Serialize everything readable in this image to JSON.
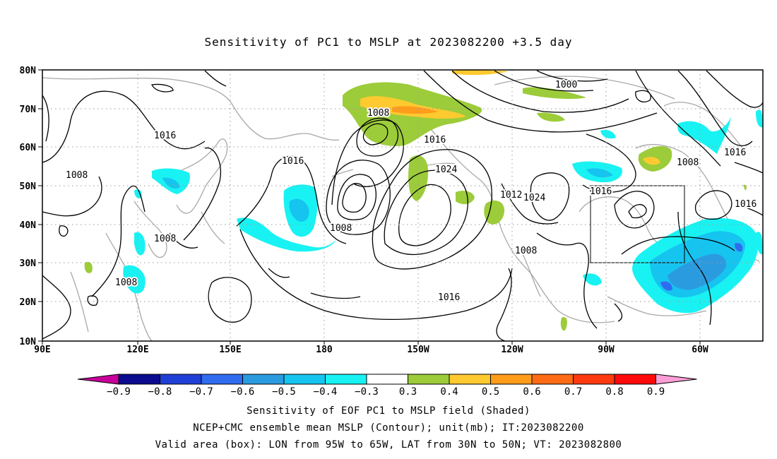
{
  "title": "Sensitivity of PC1 to MSLP at 2023082200 +3.5 day",
  "lat_labels": [
    "80N",
    "70N",
    "60N",
    "50N",
    "40N",
    "30N",
    "20N",
    "10N"
  ],
  "lon_labels": [
    "90E",
    "120E",
    "150E",
    "180",
    "150W",
    "120W",
    "90W",
    "60W"
  ],
  "contour_labels": {
    "c1000": "1000",
    "c1008a": "1008",
    "c1008b": "1008",
    "c1008c": "1008",
    "c1008d": "1008",
    "c1008e": "1008",
    "c1008f": "1008",
    "c1008g": "1008",
    "c1016a": "1016",
    "c1016b": "1016",
    "c1016c": "1016",
    "c1016d": "1016",
    "c1016e": "1016",
    "c1016f": "1016",
    "c1016g": "1016",
    "c1024a": "1024",
    "c1024b": "1024",
    "c1012": "1012"
  },
  "colorbar": {
    "labels": [
      "-0.9",
      "-0.8",
      "-0.7",
      "-0.6",
      "-0.5",
      "-0.4",
      "-0.3",
      "0.3",
      "0.4",
      "0.5",
      "0.6",
      "0.7",
      "0.8",
      "0.9"
    ],
    "colors": [
      "#0b0b8f",
      "#1f3fd6",
      "#2f6cf0",
      "#2b9be0",
      "#16c4f0",
      "#19f2f2",
      "#ffffff",
      "#9ccc3a",
      "#ffc930",
      "#ff9c1a",
      "#ff6a14",
      "#ff3a10",
      "#ff0a0a"
    ],
    "low_color": "#c8009a",
    "high_color": "#ff9ed6"
  },
  "captions": {
    "line1": "Sensitivity of EOF PC1 to MSLP field (Shaded)",
    "line2": "NCEP+CMC ensemble mean MSLP (Contour); unit(mb); IT:2023082200",
    "line3": "Valid area (box): LON from 95W to 65W, LAT from 30N to 50N; VT: 2023082800"
  }
}
